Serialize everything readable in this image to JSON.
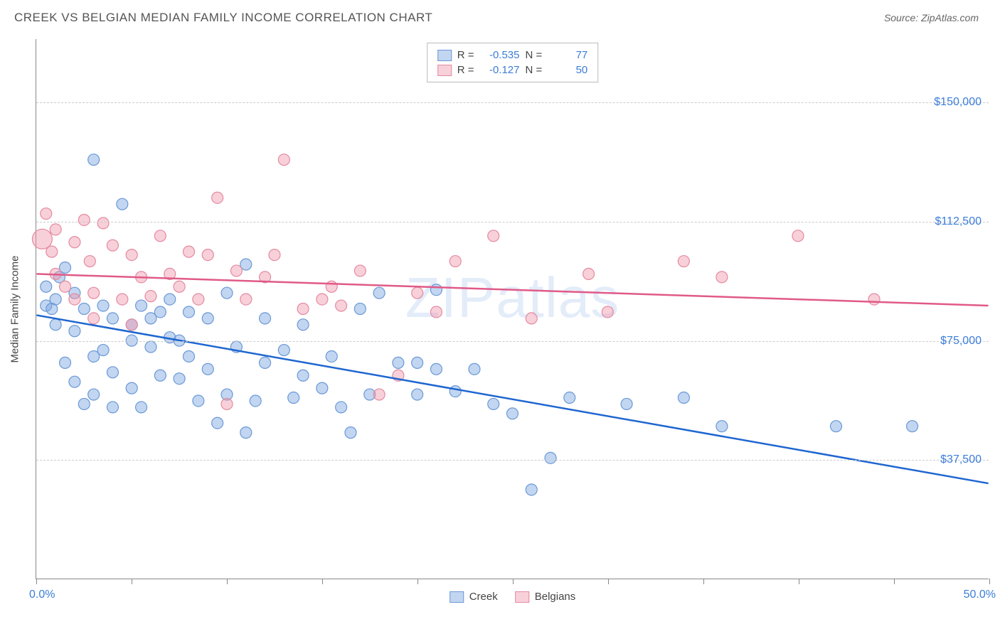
{
  "header": {
    "title": "CREEK VS BELGIAN MEDIAN FAMILY INCOME CORRELATION CHART",
    "source": "Source: ZipAtlas.com"
  },
  "watermark": {
    "part1": "ZIP",
    "part2": "atlas"
  },
  "chart": {
    "type": "scatter",
    "xlim": [
      0,
      50
    ],
    "ylim": [
      0,
      170000
    ],
    "ytick_values": [
      37500,
      75000,
      112500,
      150000
    ],
    "ytick_labels": [
      "$37,500",
      "$75,000",
      "$112,500",
      "$150,000"
    ],
    "xtick_values": [
      0,
      5,
      10,
      15,
      20,
      25,
      30,
      35,
      40,
      45,
      50
    ],
    "xaxis_label_left": "0.0%",
    "xaxis_label_right": "50.0%",
    "yaxis_title": "Median Family Income",
    "background_color": "#ffffff",
    "grid_color": "#cccccc",
    "series": [
      {
        "name": "Creek",
        "marker_color_fill": "rgba(120, 165, 225, 0.45)",
        "marker_color_stroke": "#6a98d6",
        "marker_radius": 8,
        "trend_color": "#1e66d0",
        "trend_width": 2.5,
        "trend": {
          "x1": 0,
          "y1": 83000,
          "x2": 50,
          "y2": 30000
        },
        "R_label": "R =",
        "R_value": "-0.535",
        "N_label": "N =",
        "N_value": "77",
        "points": [
          [
            0.5,
            92000
          ],
          [
            0.5,
            86000
          ],
          [
            0.8,
            85000
          ],
          [
            1,
            80000
          ],
          [
            1,
            88000
          ],
          [
            1.2,
            95000
          ],
          [
            1.5,
            68000
          ],
          [
            1.5,
            98000
          ],
          [
            2,
            62000
          ],
          [
            2,
            78000
          ],
          [
            2,
            90000
          ],
          [
            2.5,
            55000
          ],
          [
            2.5,
            85000
          ],
          [
            3,
            70000
          ],
          [
            3,
            132000
          ],
          [
            3,
            58000
          ],
          [
            3.5,
            86000
          ],
          [
            3.5,
            72000
          ],
          [
            4,
            54000
          ],
          [
            4,
            82000
          ],
          [
            4,
            65000
          ],
          [
            4.5,
            118000
          ],
          [
            5,
            60000
          ],
          [
            5,
            80000
          ],
          [
            5,
            75000
          ],
          [
            5.5,
            54000
          ],
          [
            5.5,
            86000
          ],
          [
            6,
            82000
          ],
          [
            6,
            73000
          ],
          [
            6.5,
            84000
          ],
          [
            6.5,
            64000
          ],
          [
            7,
            76000
          ],
          [
            7,
            88000
          ],
          [
            7.5,
            75000
          ],
          [
            7.5,
            63000
          ],
          [
            8,
            84000
          ],
          [
            8,
            70000
          ],
          [
            8.5,
            56000
          ],
          [
            9,
            66000
          ],
          [
            9,
            82000
          ],
          [
            9.5,
            49000
          ],
          [
            10,
            90000
          ],
          [
            10,
            58000
          ],
          [
            10.5,
            73000
          ],
          [
            11,
            99000
          ],
          [
            11,
            46000
          ],
          [
            11.5,
            56000
          ],
          [
            12,
            82000
          ],
          [
            12,
            68000
          ],
          [
            13,
            72000
          ],
          [
            13.5,
            57000
          ],
          [
            14,
            64000
          ],
          [
            14,
            80000
          ],
          [
            15,
            60000
          ],
          [
            15.5,
            70000
          ],
          [
            16,
            54000
          ],
          [
            16.5,
            46000
          ],
          [
            17,
            85000
          ],
          [
            17.5,
            58000
          ],
          [
            18,
            90000
          ],
          [
            19,
            68000
          ],
          [
            20,
            68000
          ],
          [
            20,
            58000
          ],
          [
            21,
            91000
          ],
          [
            21,
            66000
          ],
          [
            22,
            59000
          ],
          [
            23,
            66000
          ],
          [
            24,
            55000
          ],
          [
            25,
            52000
          ],
          [
            26,
            28000
          ],
          [
            27,
            38000
          ],
          [
            28,
            57000
          ],
          [
            31,
            55000
          ],
          [
            34,
            57000
          ],
          [
            36,
            48000
          ],
          [
            42,
            48000
          ],
          [
            46,
            48000
          ]
        ]
      },
      {
        "name": "Belgians",
        "marker_color_fill": "rgba(240, 150, 170, 0.45)",
        "marker_color_stroke": "#e48aa0",
        "marker_radius": 8,
        "trend_color": "#e05a88",
        "trend_width": 2.5,
        "trend": {
          "x1": 0,
          "y1": 96000,
          "x2": 50,
          "y2": 86000
        },
        "R_label": "R =",
        "R_value": "-0.127",
        "N_label": "N =",
        "N_value": "50",
        "points": [
          [
            0.3,
            107000,
            14
          ],
          [
            0.5,
            115000
          ],
          [
            0.8,
            103000
          ],
          [
            1,
            110000
          ],
          [
            1,
            96000
          ],
          [
            1.5,
            92000
          ],
          [
            2,
            106000
          ],
          [
            2,
            88000
          ],
          [
            2.5,
            113000
          ],
          [
            2.8,
            100000
          ],
          [
            3,
            90000
          ],
          [
            3,
            82000
          ],
          [
            3.5,
            112000
          ],
          [
            4,
            105000
          ],
          [
            4.5,
            88000
          ],
          [
            5,
            80000
          ],
          [
            5,
            102000
          ],
          [
            5.5,
            95000
          ],
          [
            6,
            89000
          ],
          [
            6.5,
            108000
          ],
          [
            7,
            96000
          ],
          [
            7.5,
            92000
          ],
          [
            8,
            103000
          ],
          [
            8.5,
            88000
          ],
          [
            9,
            102000
          ],
          [
            9.5,
            120000
          ],
          [
            10,
            55000
          ],
          [
            10.5,
            97000
          ],
          [
            11,
            88000
          ],
          [
            12,
            95000
          ],
          [
            12.5,
            102000
          ],
          [
            13,
            132000
          ],
          [
            14,
            85000
          ],
          [
            15,
            88000
          ],
          [
            15.5,
            92000
          ],
          [
            16,
            86000
          ],
          [
            17,
            97000
          ],
          [
            18,
            58000
          ],
          [
            19,
            64000
          ],
          [
            20,
            90000
          ],
          [
            21,
            84000
          ],
          [
            22,
            100000
          ],
          [
            24,
            108000
          ],
          [
            26,
            82000
          ],
          [
            29,
            96000
          ],
          [
            30,
            84000
          ],
          [
            34,
            100000
          ],
          [
            36,
            95000
          ],
          [
            40,
            108000
          ],
          [
            44,
            88000
          ]
        ]
      }
    ],
    "legend_bottom": [
      {
        "name": "Creek",
        "fill": "rgba(120,165,225,0.45)",
        "stroke": "#6a98d6"
      },
      {
        "name": "Belgians",
        "fill": "rgba(240,150,170,0.45)",
        "stroke": "#e48aa0"
      }
    ]
  }
}
